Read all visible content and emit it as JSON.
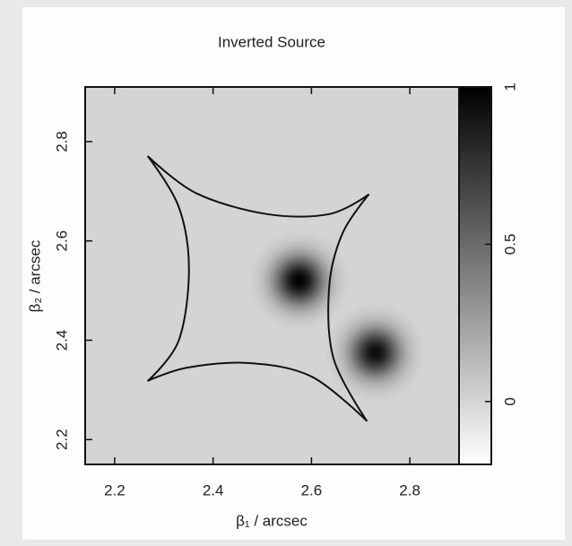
{
  "chart_data": {
    "type": "heatmap",
    "title": "Inverted Source",
    "xlabel": "β₁ / arcsec",
    "ylabel": "β₂ / arcsec",
    "xlim": [
      2.14,
      2.9
    ],
    "ylim": [
      2.15,
      2.91
    ],
    "xticks": [
      2.2,
      2.4,
      2.6,
      2.8
    ],
    "yticks": [
      2.2,
      2.4,
      2.6,
      2.8
    ],
    "zlim": [
      -0.2,
      1
    ],
    "zticks": [
      0,
      0.5,
      1
    ],
    "background_level": 0,
    "sources": [
      {
        "x": 2.575,
        "y": 2.52,
        "peak": 1,
        "sigma": 0.035
      },
      {
        "x": 2.73,
        "y": 2.375,
        "peak": 0.95,
        "sigma": 0.035
      }
    ],
    "caustic": {
      "color": "#111111",
      "x": [
        2.267,
        2.366,
        2.51,
        2.636,
        2.717,
        2.663,
        2.636,
        2.645,
        2.713,
        2.6,
        2.474,
        2.348,
        2.267,
        2.33,
        2.351,
        2.33,
        2.267
      ],
      "y": [
        2.771,
        2.696,
        2.654,
        2.654,
        2.694,
        2.615,
        2.507,
        2.363,
        2.237,
        2.327,
        2.354,
        2.345,
        2.318,
        2.399,
        2.543,
        2.669,
        2.771
      ]
    }
  }
}
